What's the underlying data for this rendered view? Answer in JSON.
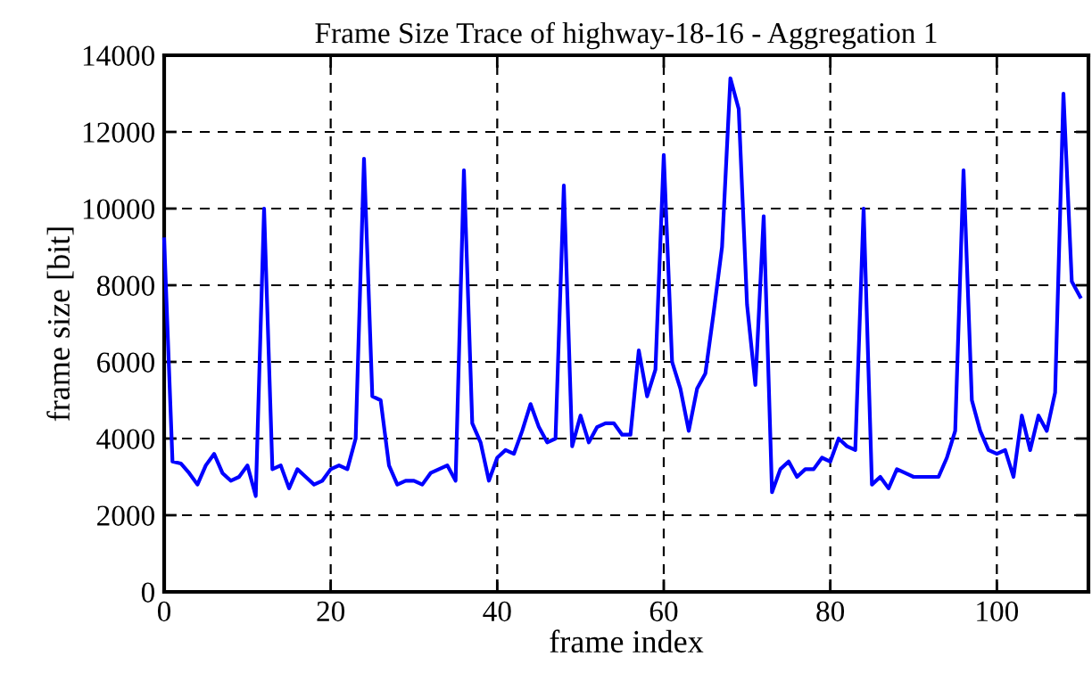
{
  "chart_data": {
    "type": "line",
    "title": "Frame Size Trace of highway-18-16 - Aggregation 1",
    "xlabel": "frame index",
    "ylabel": "frame size [bit]",
    "x": [
      0,
      1,
      2,
      3,
      4,
      5,
      6,
      7,
      8,
      9,
      10,
      11,
      12,
      13,
      14,
      15,
      16,
      17,
      18,
      19,
      20,
      21,
      22,
      23,
      24,
      25,
      26,
      27,
      28,
      29,
      30,
      31,
      32,
      33,
      34,
      35,
      36,
      37,
      38,
      39,
      40,
      41,
      42,
      43,
      44,
      45,
      46,
      47,
      48,
      49,
      50,
      51,
      52,
      53,
      54,
      55,
      56,
      57,
      58,
      59,
      60,
      61,
      62,
      63,
      64,
      65,
      66,
      67,
      68,
      69,
      70,
      71,
      72,
      73,
      74,
      75,
      76,
      77,
      78,
      79,
      80,
      81,
      82,
      83,
      84,
      85,
      86,
      87,
      88,
      89,
      90,
      91,
      92,
      93,
      94,
      95,
      96,
      97,
      98,
      99,
      100,
      101,
      102,
      103,
      104,
      105,
      106,
      107,
      108,
      109,
      110
    ],
    "series": [
      {
        "color": "#0000ff",
        "values": [
          9200,
          3400,
          3350,
          3100,
          2800,
          3300,
          3600,
          3100,
          2900,
          3000,
          3300,
          2500,
          10000,
          3200,
          3300,
          2700,
          3200,
          3000,
          2800,
          2900,
          3200,
          3300,
          3200,
          4000,
          11300,
          5100,
          5000,
          3300,
          2800,
          2900,
          2900,
          2800,
          3100,
          3200,
          3300,
          2900,
          11000,
          4400,
          3900,
          2900,
          3500,
          3700,
          3600,
          4200,
          4900,
          4300,
          3900,
          4000,
          10600,
          3800,
          4600,
          3900,
          4300,
          4400,
          4400,
          4100,
          4100,
          6300,
          5100,
          5800,
          11400,
          6000,
          5300,
          4200,
          5300,
          5700,
          7300,
          9000,
          13400,
          12600,
          7500,
          5400,
          9800,
          2600,
          3200,
          3400,
          3000,
          3200,
          3200,
          3500,
          3400,
          4000,
          3800,
          3700,
          10000,
          2800,
          3000,
          2700,
          3200,
          3100,
          3000,
          3000,
          3000,
          3000,
          3500,
          4200,
          11000,
          5000,
          4200,
          3700,
          3600,
          3700,
          3000,
          4600,
          3700,
          4600,
          4200,
          5200,
          13000,
          8100,
          7700
        ]
      }
    ],
    "xlim": [
      0,
      111
    ],
    "ylim": [
      0,
      14000
    ],
    "xticks": [
      0,
      20,
      40,
      60,
      80,
      100
    ],
    "yticks": [
      0,
      2000,
      4000,
      6000,
      8000,
      10000,
      12000,
      14000
    ],
    "grid": true,
    "legend": false,
    "marker": "none",
    "line_style": "solid"
  }
}
